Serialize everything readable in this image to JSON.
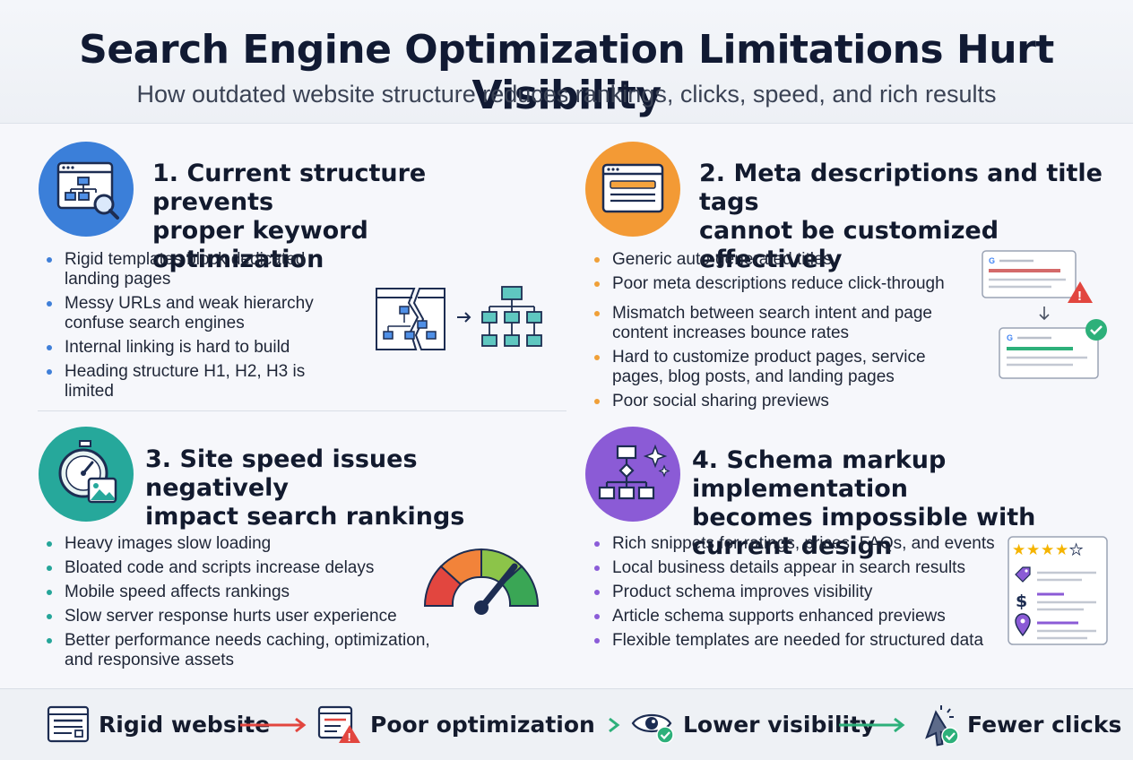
{
  "header": {
    "title": "Search Engine Optimization Limitations Hurt Visibility",
    "subtitle": "How outdated website structure reduces rankings, clicks, speed, and rich results"
  },
  "sections": [
    {
      "title_line1": "1. Current structure prevents",
      "title_line2": "proper keyword optimization",
      "icon": "site-structure-search-icon",
      "accent": "#3f7fd8",
      "bullets": [
        "Rigid templates block dedicated landing pages",
        "Messy URLs and weak hierarchy confuse search engines",
        "Internal linking is hard to build",
        "Heading structure H1, H2, H3 is limited"
      ],
      "illustration": "broken-hierarchy-to-organized-hierarchy"
    },
    {
      "title_line1": "2. Meta descriptions and title tags",
      "title_line2": "cannot be customized effectively",
      "icon": "meta-tag-window-icon",
      "accent": "#f0a038",
      "bullets": [
        "Generic auto-generated titles",
        "Poor meta descriptions reduce click-through",
        "Mismatch between search intent and page content increases bounce rates",
        "Hard to customize product pages, service pages, blog posts, and landing pages",
        "Poor social sharing previews"
      ],
      "illustration": "search-result-warning-to-check"
    },
    {
      "title_line1": "3. Site speed issues negatively",
      "title_line2": "impact search rankings",
      "icon": "stopwatch-image-icon",
      "accent": "#25a599",
      "bullets": [
        "Heavy images slow loading",
        "Bloated code and scripts increase delays",
        "Mobile speed affects rankings",
        "Slow server response hurts user experience",
        "Better performance needs caching, optimization, and responsive assets"
      ],
      "illustration": "speed-gauge"
    },
    {
      "title_line1": "4. Schema markup implementation",
      "title_line2": "becomes impossible with current design",
      "icon": "schema-structure-sparkle-icon",
      "accent": "#8b5cd8",
      "bullets": [
        "Rich snippets for ratings, prices, FAQs, and events",
        "Local business details appear in search results",
        "Product schema improves visibility",
        "Article schema supports enhanced previews",
        "Flexible templates are needed for structured data"
      ],
      "illustration": "rich-snippet-card",
      "rating_stars": 4
    }
  ],
  "flow": [
    {
      "label": "Rigid website",
      "icon": "browser-window-icon"
    },
    {
      "label": "Poor optimization",
      "icon": "warning-list-icon"
    },
    {
      "label": "Lower visibility",
      "icon": "eye-check-icon"
    },
    {
      "label": "Fewer clicks",
      "icon": "cursor-click-icon"
    }
  ],
  "colors": {
    "blue": "#3f7fd8",
    "orange": "#f0a038",
    "teal": "#25a599",
    "purple": "#8b5cd8",
    "red": "#e2463f",
    "green": "#2db07a"
  }
}
